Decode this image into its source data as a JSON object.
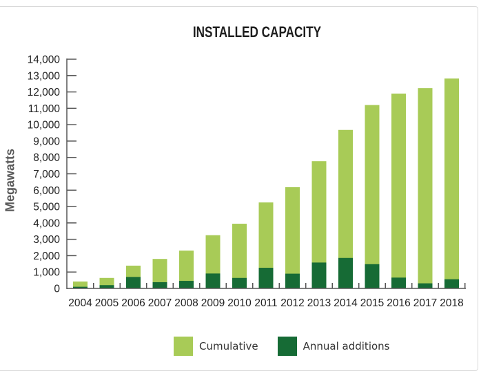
{
  "chart_data": {
    "type": "bar",
    "stacked": false,
    "overlay": true,
    "title": "INSTALLED CAPACITY",
    "xlabel": "",
    "ylabel": "Megawatts",
    "ylim": [
      0,
      14000
    ],
    "yticks": [
      0,
      1000,
      2000,
      3000,
      4000,
      5000,
      6000,
      7000,
      8000,
      9000,
      10000,
      11000,
      12000,
      13000,
      14000
    ],
    "ytick_labels": [
      "0",
      "1,000",
      "2,000",
      "3,000",
      "4,000",
      "5,000",
      "6,000",
      "7,000",
      "8,000",
      "9,000",
      "10,000",
      "11,000",
      "12,000",
      "13,000",
      "14,000"
    ],
    "grid": false,
    "categories": [
      "2004",
      "2005",
      "2006",
      "2007",
      "2008",
      "2009",
      "2010",
      "2011",
      "2012",
      "2013",
      "2014",
      "2015",
      "2016",
      "2017",
      "2018"
    ],
    "series": [
      {
        "name": "Cumulative",
        "color": "#a8cb57",
        "values": [
          420,
          640,
          1390,
          1800,
          2310,
          3250,
          3950,
          5250,
          6180,
          7770,
          9680,
          11200,
          11900,
          12230,
          12820
        ]
      },
      {
        "name": "Annual additions",
        "color": "#166b35",
        "values": [
          100,
          200,
          700,
          380,
          460,
          910,
          640,
          1260,
          900,
          1580,
          1860,
          1480,
          660,
          310,
          560
        ]
      }
    ],
    "legend": {
      "placement": "bottom-center",
      "entries": [
        "Cumulative",
        "Annual additions"
      ]
    }
  }
}
